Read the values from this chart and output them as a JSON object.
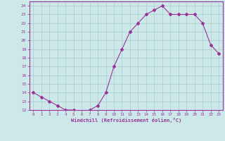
{
  "x": [
    0,
    1,
    2,
    3,
    4,
    5,
    6,
    7,
    8,
    9,
    10,
    11,
    12,
    13,
    14,
    15,
    16,
    17,
    18,
    19,
    20,
    21,
    22,
    23
  ],
  "y": [
    14,
    13.5,
    13,
    12.5,
    12,
    12,
    11.8,
    12,
    12.5,
    14,
    17,
    19,
    21,
    22,
    23,
    23.5,
    24,
    23,
    23,
    23,
    23,
    22,
    19.5,
    18.5
  ],
  "line_color": "#993399",
  "marker": "D",
  "markersize": 2,
  "linewidth": 0.8,
  "bg_color": "#cce8e8",
  "grid_color": "#aacccc",
  "xlabel": "Windchill (Refroidissement éolien,°C)",
  "ylim": [
    12,
    24.5
  ],
  "xlim": [
    -0.5,
    23.5
  ],
  "yticks": [
    12,
    13,
    14,
    15,
    16,
    17,
    18,
    19,
    20,
    21,
    22,
    23,
    24
  ],
  "xticks": [
    0,
    1,
    2,
    3,
    4,
    5,
    6,
    7,
    8,
    9,
    10,
    11,
    12,
    13,
    14,
    15,
    16,
    17,
    18,
    19,
    20,
    21,
    22,
    23
  ],
  "tick_color": "#993399",
  "xlabel_color": "#993399",
  "border_color": "#993399"
}
